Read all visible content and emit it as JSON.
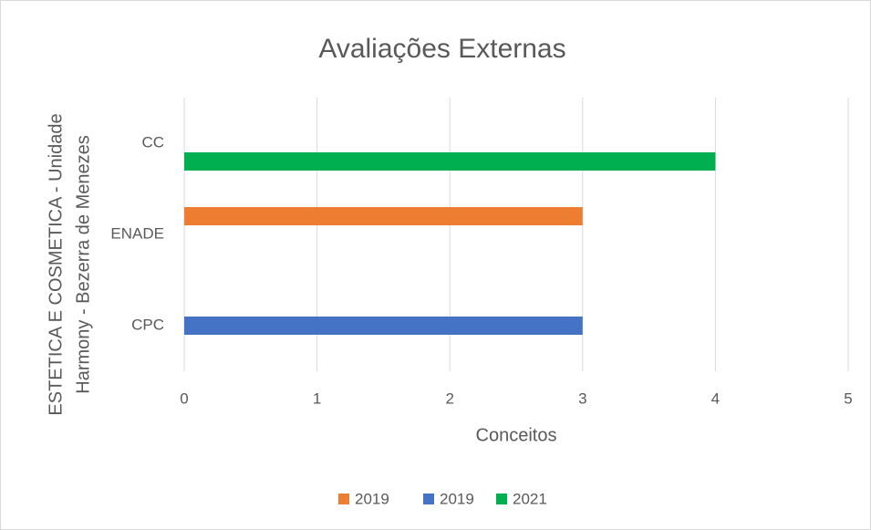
{
  "chart_data": {
    "type": "hbar",
    "title": "Avaliações Externas",
    "x_label": "Conceitos",
    "y_label": [
      "ESTETICA E COSMETICA - Unidade",
      "Harmony - Bezerra de Menezes"
    ],
    "categories": [
      "CPC",
      "ENADE",
      "CC"
    ],
    "series": [
      {
        "name": "2019",
        "color": "#ed7d31",
        "values": [
          null,
          3,
          null
        ]
      },
      {
        "name": "2019",
        "color": "#4472c4",
        "values": [
          3,
          null,
          null
        ]
      },
      {
        "name": "2021",
        "color": "#00b050",
        "values": [
          null,
          null,
          4
        ]
      }
    ],
    "xlim": [
      0,
      5
    ],
    "xticks": [
      0,
      1,
      2,
      3,
      4,
      5
    ],
    "grid": true,
    "legend": "bottom"
  }
}
